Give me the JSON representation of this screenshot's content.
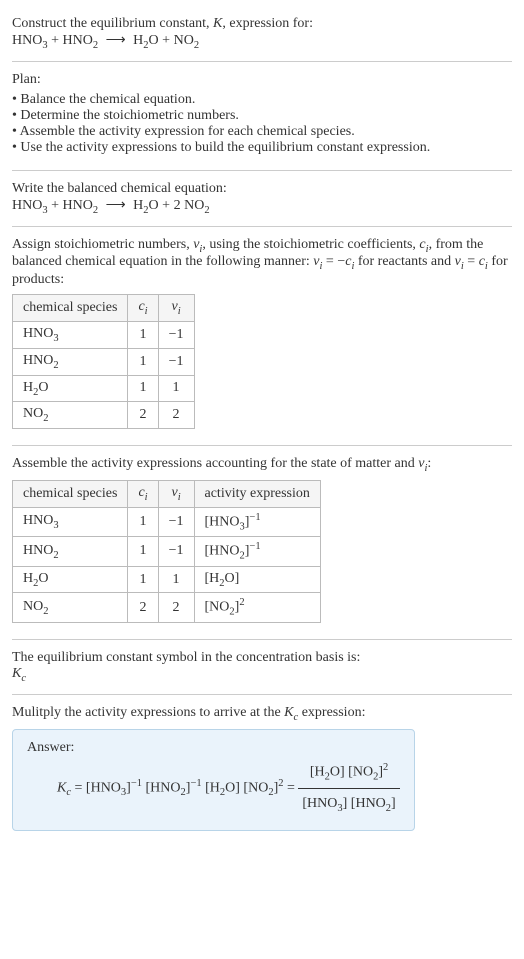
{
  "intro": {
    "line1_a": "Construct the equilibrium constant, ",
    "line1_K": "K",
    "line1_b": ", expression for:"
  },
  "eq_unbalanced": {
    "r1": "HNO",
    "r1_sub": "3",
    "plus1": " + ",
    "r2": "HNO",
    "r2_sub": "2",
    "arrow": "⟶",
    "p1": "H",
    "p1_sub": "2",
    "p1b": "O",
    "plus2": " + ",
    "p2": "NO",
    "p2_sub": "2"
  },
  "plan": {
    "title": "Plan:",
    "b1": "Balance the chemical equation.",
    "b2": "Determine the stoichiometric numbers.",
    "b3": "Assemble the activity expression for each chemical species.",
    "b4": "Use the activity expressions to build the equilibrium constant expression."
  },
  "balanced_intro": "Write the balanced chemical equation:",
  "eq_balanced": {
    "r1": "HNO",
    "r1_sub": "3",
    "plus1": " + ",
    "r2": "HNO",
    "r2_sub": "2",
    "arrow": "⟶",
    "p1": "H",
    "p1_sub": "2",
    "p1b": "O",
    "plus2": " + 2 ",
    "p2": "NO",
    "p2_sub": "2"
  },
  "assign_text_a": "Assign stoichiometric numbers, ",
  "assign_nu": "ν",
  "assign_i": "i",
  "assign_text_b": ", using the stoichiometric coefficients, ",
  "assign_c": "c",
  "assign_text_c": ", from the balanced chemical equation in the following manner: ",
  "assign_eq1_a": "ν",
  "assign_eq1_b": " = −",
  "assign_eq1_c": "c",
  "assign_text_d": " for reactants and ",
  "assign_eq2_a": "ν",
  "assign_eq2_b": " = ",
  "assign_eq2_c": "c",
  "assign_text_e": " for products:",
  "table1": {
    "h1": "chemical species",
    "h2_a": "c",
    "h2_b": "i",
    "h3_a": "ν",
    "h3_b": "i",
    "rows": [
      {
        "sp_a": "HNO",
        "sp_sub": "3",
        "c": "1",
        "nu": "−1"
      },
      {
        "sp_a": "HNO",
        "sp_sub": "2",
        "c": "1",
        "nu": "−1"
      },
      {
        "sp_a": "H",
        "sp_sub": "2",
        "sp_b": "O",
        "c": "1",
        "nu": "1"
      },
      {
        "sp_a": "NO",
        "sp_sub": "2",
        "c": "2",
        "nu": "2"
      }
    ]
  },
  "assemble_text_a": "Assemble the activity expressions accounting for the state of matter and ",
  "assemble_nu": "ν",
  "assemble_i": "i",
  "assemble_text_b": ":",
  "table2": {
    "h1": "chemical species",
    "h2_a": "c",
    "h2_b": "i",
    "h3_a": "ν",
    "h3_b": "i",
    "h4": "activity expression",
    "rows": [
      {
        "sp_a": "HNO",
        "sp_sub": "3",
        "c": "1",
        "nu": "−1",
        "ae_a": "[HNO",
        "ae_sub": "3",
        "ae_b": "]",
        "ae_sup": "−1"
      },
      {
        "sp_a": "HNO",
        "sp_sub": "2",
        "c": "1",
        "nu": "−1",
        "ae_a": "[HNO",
        "ae_sub": "2",
        "ae_b": "]",
        "ae_sup": "−1"
      },
      {
        "sp_a": "H",
        "sp_sub": "2",
        "sp_b": "O",
        "c": "1",
        "nu": "1",
        "ae_a": "[H",
        "ae_sub": "2",
        "ae_b": "O]",
        "ae_sup": ""
      },
      {
        "sp_a": "NO",
        "sp_sub": "2",
        "c": "2",
        "nu": "2",
        "ae_a": "[NO",
        "ae_sub": "2",
        "ae_b": "]",
        "ae_sup": "2"
      }
    ]
  },
  "eq_const_text": "The equilibrium constant symbol in the concentration basis is:",
  "Kc_a": "K",
  "Kc_b": "c",
  "multiply_text_a": "Mulitply the activity expressions to arrive at the ",
  "multiply_text_b": " expression:",
  "answer": {
    "label": "Answer:",
    "lhs_a": "K",
    "lhs_b": "c",
    "eq": " = ",
    "t1_a": "[HNO",
    "t1_sub": "3",
    "t1_b": "]",
    "t1_sup": "−1",
    "sp1": " ",
    "t2_a": "[HNO",
    "t2_sub": "2",
    "t2_b": "]",
    "t2_sup": "−1",
    "sp2": " ",
    "t3_a": "[H",
    "t3_sub": "2",
    "t3_b": "O]",
    "sp3": " ",
    "t4_a": "[NO",
    "t4_sub": "2",
    "t4_b": "]",
    "t4_sup": "2",
    "eq2": " = ",
    "num_a": "[H",
    "num_sub": "2",
    "num_b": "O] [NO",
    "num_sub2": "2",
    "num_c": "]",
    "num_sup": "2",
    "den_a": "[HNO",
    "den_sub": "3",
    "den_b": "] [HNO",
    "den_sub2": "2",
    "den_c": "]"
  }
}
